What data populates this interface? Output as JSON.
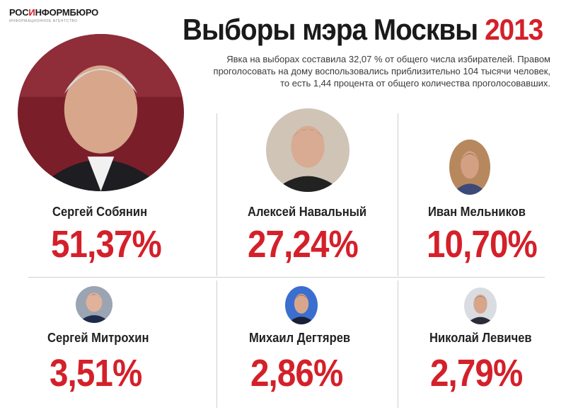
{
  "logo": {
    "part1": "РОС",
    "part2": "И",
    "part3": "НФОРМБЮРО",
    "subtitle": "ИНФОРМАЦИОННОЕ АГЕНТСТВО"
  },
  "title": {
    "text": "Выборы мэра Москвы",
    "year": "2013"
  },
  "note": "Явка на выборах составила 32,07 % от общего числа избирателей. Правом проголосовать на дому воспользовались приблизительно 104 тысячи человек, то есть 1,44 процента от общего количества проголосовавших.",
  "candidates": [
    {
      "name": "Сергей Собянин",
      "percent": "51,37%",
      "photo_icon": "portrait-photo"
    },
    {
      "name": "Алексей Навальный",
      "percent": "27,24%",
      "photo_icon": "portrait-photo"
    },
    {
      "name": "Иван Мельников",
      "percent": "10,70%",
      "photo_icon": "portrait-photo"
    },
    {
      "name": "Сергей Митрохин",
      "percent": "3,51%",
      "photo_icon": "portrait-photo"
    },
    {
      "name": "Михаил Дегтярев",
      "percent": "2,86%",
      "photo_icon": "portrait-photo"
    },
    {
      "name": "Николай Левичев",
      "percent": "2,79%",
      "photo_icon": "portrait-photo"
    }
  ],
  "colors": {
    "accent": "#d4202a",
    "text": "#1a1a1a",
    "divider": "#cfcfcf"
  }
}
